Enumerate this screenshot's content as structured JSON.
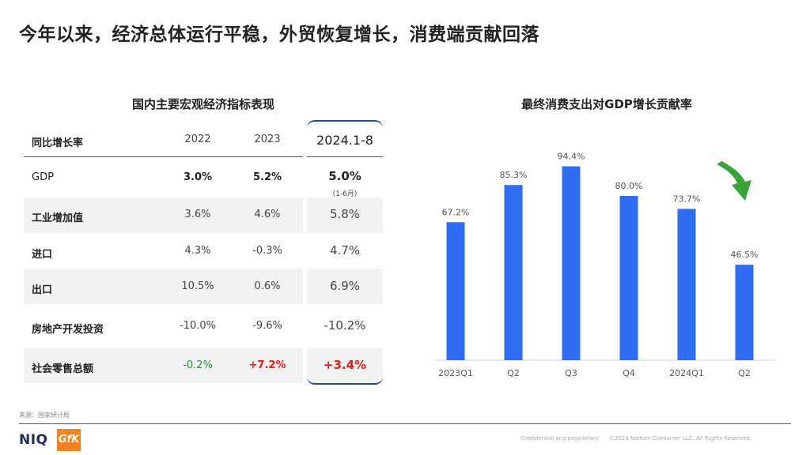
{
  "title": "今年以来，经济总体运行平稳，外贸恢复增长，消费端贡献回落",
  "table": {
    "title": "国内主要宏观经济指标表现",
    "headers": [
      "同比增长率",
      "2022",
      "2023",
      "2024.1-8"
    ],
    "rows": [
      {
        "label": "GDP",
        "v2022": "3.0%",
        "v2023": "5.2%",
        "v2024": "5.0%",
        "note": "(1-6月)"
      },
      {
        "label": "工业增加值",
        "v2022": "3.6%",
        "v2023": "4.6%",
        "v2024": "5.8%"
      },
      {
        "label": "进口",
        "v2022": "4.3%",
        "v2023": "-0.3%",
        "v2024": "4.7%"
      },
      {
        "label": "出口",
        "v2022": "10.5%",
        "v2023": "0.6%",
        "v2024": "6.9%"
      },
      {
        "label": "房地产开发投资",
        "v2022": "-10.0%",
        "v2023": "-9.6%",
        "v2024": "-10.2%"
      },
      {
        "label": "社会零售总额",
        "v2022": "-0.2%",
        "v2023": "+7.2%",
        "v2024": "+3.4%"
      }
    ]
  },
  "chart_data": {
    "type": "bar",
    "title": "最终消费支出对GDP增长贡献率",
    "categories": [
      "2023Q1",
      "Q2",
      "Q3",
      "Q4",
      "2024Q1",
      "Q2"
    ],
    "values": [
      67.2,
      85.3,
      94.4,
      80.0,
      73.7,
      46.5
    ],
    "value_labels": [
      "67.2%",
      "85.3%",
      "94.4%",
      "80.0%",
      "73.7%",
      "46.5%"
    ],
    "ylim": [
      0,
      100
    ],
    "bar_color": "#2f6ef0",
    "trend_arrow_color": "#3aa23a",
    "xlabel": "",
    "ylabel": ""
  },
  "source": "来源：国家统计局",
  "footer": {
    "logo_niq": "NIQ",
    "logo_gfk": "GfK",
    "confidential": "Confidential and proprietary",
    "copyright": "©2024 Nielsen Consumer LLC. All Rights Reserved."
  }
}
